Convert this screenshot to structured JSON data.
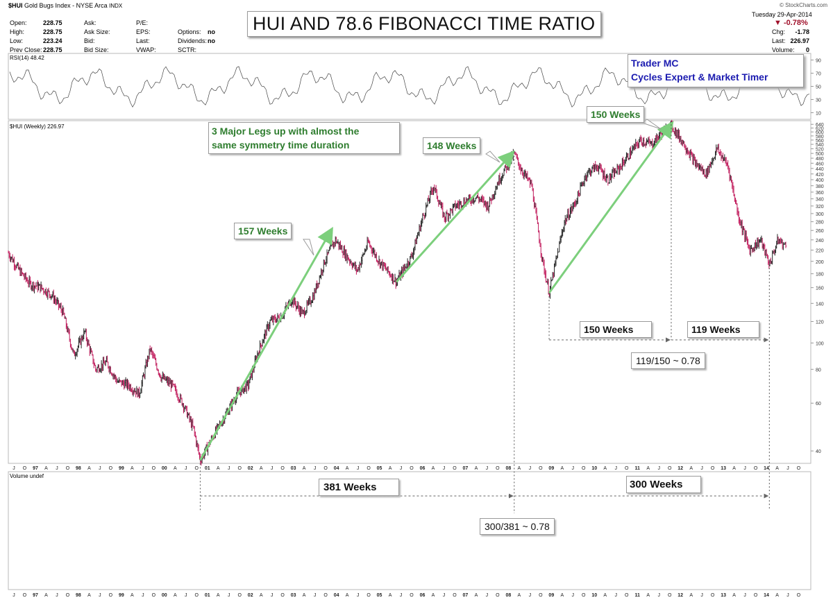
{
  "header": {
    "symbol": "$HUI",
    "name": "Gold Bugs Index - NYSE Arca",
    "exchange": "INDX",
    "copyright": "© StockCharts.com",
    "date": "Tuesday  29-Apr-2014",
    "change_pct": "-0.78%",
    "fields": {
      "open_label": "Open:",
      "open": "228.75",
      "high_label": "High:",
      "high": "228.75",
      "low_label": "Low:",
      "low": "223.24",
      "prev_label": "Prev Close:",
      "prev": "228.75",
      "ask_label": "Ask:",
      "ask_size_label": "Ask Size:",
      "bid_label": "Bid:",
      "bid_size_label": "Bid Size:",
      "pe_label": "P/E:",
      "eps_label": "EPS:",
      "last_label": "Last:",
      "vwap_label": "VWAP:",
      "options_label": "Options:",
      "options": "no",
      "dividends_label": "Dividends:",
      "dividends": "no",
      "sctr_label": "SCTR:",
      "chg_label": "Chg:",
      "chg": "-1.78",
      "last2_label": "Last:",
      "last2": "226.97",
      "volume_label": "Volume:",
      "volume": "0"
    }
  },
  "title": "HUI AND 78.6 FIBONACCI TIME RATIO",
  "author": {
    "line1": "Trader MC",
    "line2": "Cycles Expert & Market Timer"
  },
  "panels": {
    "rsi_label": "RSI(14) 48.42",
    "price_label": "$HUI (Weekly) 226.97",
    "volume_label": "Volume undef"
  },
  "annotations": {
    "legs_note_line1": "3 Major Legs up with almost the",
    "legs_note_line2": "same symmetry time duration",
    "leg1": "157 Weeks",
    "leg2": "148 Weeks",
    "leg3": "150 Weeks",
    "span_150": "150 Weeks",
    "span_119": "119 Weeks",
    "ratio_small": "119/150 ~ 0.78",
    "span_381": "381 Weeks",
    "span_300": "300 Weeks",
    "ratio_big": "300/381 ~ 0.78"
  },
  "colors": {
    "price_up": "#222222",
    "price_down": "#c0185a",
    "arrow_green": "#7ccf7c",
    "text_green": "#2e7d2e",
    "text_blue": "#1b1bb0",
    "down_red": "#a0102a"
  },
  "chart_data": {
    "type": "line",
    "scale": "log",
    "x_unit": "year",
    "series": [
      {
        "values": [
          [
            1996.5,
            215
          ],
          [
            1996.75,
            185
          ],
          [
            1997.0,
            165
          ],
          [
            1997.25,
            160
          ],
          [
            1997.5,
            150
          ],
          [
            1997.75,
            130
          ],
          [
            1998.0,
            90
          ],
          [
            1998.25,
            110
          ],
          [
            1998.5,
            80
          ],
          [
            1998.75,
            85
          ],
          [
            1999.0,
            72
          ],
          [
            1999.25,
            70
          ],
          [
            1999.5,
            65
          ],
          [
            1999.75,
            95
          ],
          [
            2000.0,
            75
          ],
          [
            2000.25,
            70
          ],
          [
            2000.5,
            60
          ],
          [
            2000.75,
            48
          ],
          [
            2000.9,
            37
          ],
          [
            2001.25,
            47
          ],
          [
            2001.5,
            55
          ],
          [
            2001.75,
            65
          ],
          [
            2002.0,
            70
          ],
          [
            2002.25,
            95
          ],
          [
            2002.5,
            120
          ],
          [
            2002.75,
            125
          ],
          [
            2003.0,
            145
          ],
          [
            2003.25,
            128
          ],
          [
            2003.5,
            150
          ],
          [
            2003.75,
            200
          ],
          [
            2004.0,
            240
          ],
          [
            2004.25,
            210
          ],
          [
            2004.5,
            185
          ],
          [
            2004.75,
            235
          ],
          [
            2005.0,
            200
          ],
          [
            2005.25,
            180
          ],
          [
            2005.4,
            168
          ],
          [
            2005.75,
            210
          ],
          [
            2006.0,
            290
          ],
          [
            2006.25,
            380
          ],
          [
            2006.5,
            290
          ],
          [
            2006.75,
            320
          ],
          [
            2007.0,
            335
          ],
          [
            2007.25,
            345
          ],
          [
            2007.5,
            320
          ],
          [
            2007.75,
            400
          ],
          [
            2008.1,
            500
          ],
          [
            2008.25,
            440
          ],
          [
            2008.5,
            380
          ],
          [
            2008.75,
            200
          ],
          [
            2008.9,
            153
          ],
          [
            2009.25,
            280
          ],
          [
            2009.5,
            330
          ],
          [
            2009.75,
            420
          ],
          [
            2010.0,
            450
          ],
          [
            2010.25,
            400
          ],
          [
            2010.5,
            440
          ],
          [
            2010.75,
            500
          ],
          [
            2011.0,
            560
          ],
          [
            2011.25,
            540
          ],
          [
            2011.5,
            600
          ],
          [
            2011.7,
            635
          ],
          [
            2012.0,
            540
          ],
          [
            2012.25,
            460
          ],
          [
            2012.5,
            420
          ],
          [
            2012.75,
            520
          ],
          [
            2013.0,
            450
          ],
          [
            2013.25,
            290
          ],
          [
            2013.5,
            220
          ],
          [
            2013.75,
            240
          ],
          [
            2013.95,
            195
          ],
          [
            2014.15,
            240
          ],
          [
            2014.33,
            227
          ]
        ]
      }
    ],
    "rsi": {
      "value": 48.42,
      "levels": [
        10,
        30,
        50,
        70,
        90
      ]
    },
    "price_axis": {
      "ticks": [
        40,
        60,
        80,
        100,
        120,
        140,
        160,
        180,
        200,
        220,
        240,
        260,
        280,
        300,
        320,
        340,
        360,
        380,
        400,
        420,
        440,
        460,
        480,
        500,
        520,
        540,
        560,
        580,
        600,
        620,
        640
      ]
    },
    "time_axis": {
      "range": [
        1996.5,
        2014.9
      ],
      "labels": [
        "J",
        "O",
        "97",
        "A",
        "J",
        "O",
        "98",
        "A",
        "J",
        "O",
        "99",
        "A",
        "J",
        "O",
        "00",
        "A",
        "J",
        "O",
        "01",
        "A",
        "J",
        "O",
        "02",
        "A",
        "J",
        "O",
        "03",
        "A",
        "J",
        "O",
        "04",
        "A",
        "J",
        "O",
        "05",
        "A",
        "J",
        "O",
        "06",
        "A",
        "J",
        "O",
        "07",
        "A",
        "J",
        "O",
        "08",
        "A",
        "J",
        "O",
        "09",
        "A",
        "J",
        "O",
        "10",
        "A",
        "J",
        "O",
        "11",
        "A",
        "J",
        "O",
        "12",
        "A",
        "J",
        "O",
        "13",
        "A",
        "J",
        "O",
        "14",
        "A",
        "J",
        "O"
      ]
    },
    "legs": [
      {
        "from": [
          2000.9,
          37
        ],
        "to": [
          2003.9,
          260
        ],
        "label": "157 Weeks"
      },
      {
        "from": [
          2005.4,
          168
        ],
        "to": [
          2008.05,
          500
        ],
        "label": "148 Weeks"
      },
      {
        "from": [
          2008.9,
          153
        ],
        "to": [
          2011.7,
          640
        ],
        "label": "150 Weeks"
      }
    ],
    "vlines": [
      2000.9,
      2008.1,
      2008.9,
      2011.7,
      2013.95
    ]
  }
}
